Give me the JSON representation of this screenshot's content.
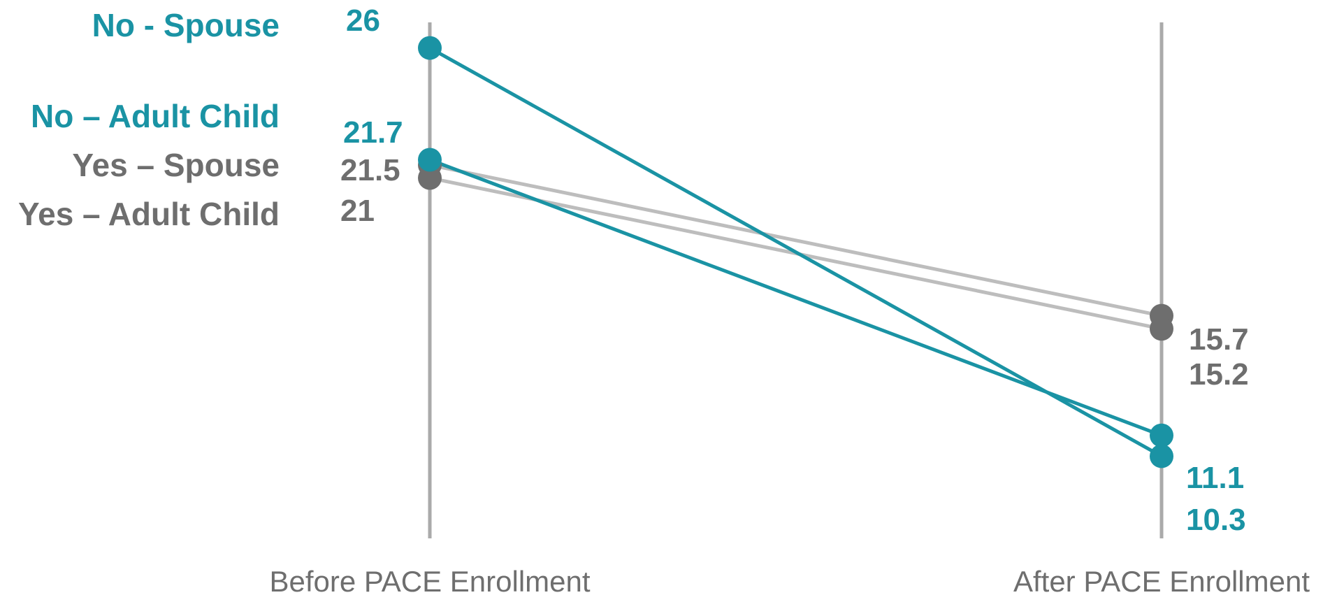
{
  "chart_data": {
    "type": "line",
    "categories": [
      "Before PACE Enrollment",
      "After PACE Enrollment"
    ],
    "title": "",
    "xlabel": "",
    "ylabel": "",
    "ylim": [
      8,
      26.5
    ],
    "grid": false,
    "legend": "none",
    "series": [
      {
        "key": "no_spouse",
        "name": "No - Spouse",
        "values": [
          26,
          10.3
        ],
        "value_labels": [
          "26",
          "10.3"
        ],
        "color": "#1a93a4",
        "line_color": "#1a93a4"
      },
      {
        "key": "no_adult_child",
        "name": "No – Adult Child",
        "values": [
          21.7,
          11.1
        ],
        "value_labels": [
          "21.7",
          "11.1"
        ],
        "color": "#1a93a4",
        "line_color": "#1a93a4"
      },
      {
        "key": "yes_spouse",
        "name": "Yes – Spouse",
        "values": [
          21.5,
          15.7
        ],
        "value_labels": [
          "21.5",
          "15.7"
        ],
        "color": "#6e6e6e",
        "line_color": "#bdbdbd"
      },
      {
        "key": "yes_adult_child",
        "name": "Yes – Adult Child",
        "values": [
          21,
          15.2
        ],
        "value_labels": [
          "21",
          "15.2"
        ],
        "color": "#6e6e6e",
        "line_color": "#bdbdbd"
      }
    ],
    "axis_color": "#aaaaaa",
    "axis_text_color": "#6e6e6e"
  }
}
